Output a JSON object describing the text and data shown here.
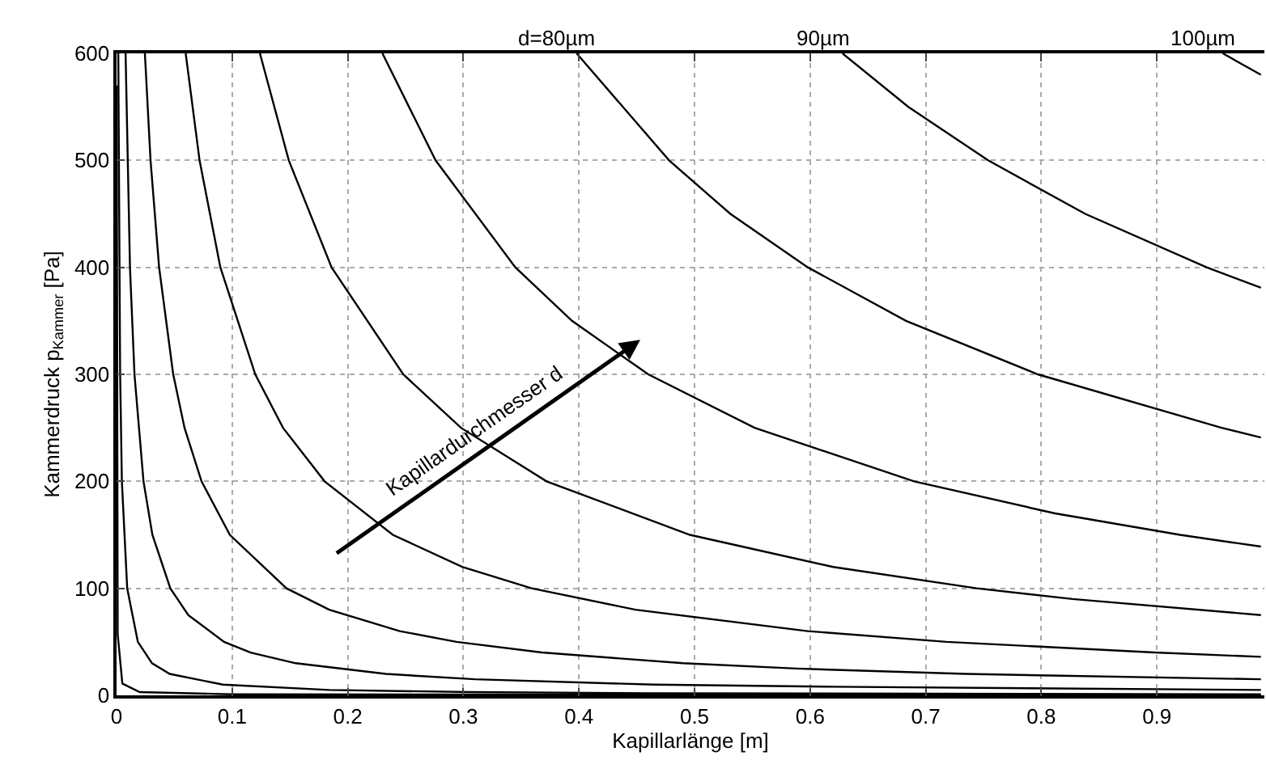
{
  "chart_data": {
    "type": "line",
    "xlabel": "Kapillarlänge [m]",
    "ylabel": "Kammerdruck p$_{Kammer}$ [Pa]",
    "xlim": [
      0,
      0.993
    ],
    "ylim": [
      0,
      600
    ],
    "xticks": [
      0,
      0.1,
      0.2,
      0.3,
      0.4,
      0.5,
      0.6,
      0.7,
      0.8,
      0.9
    ],
    "yticks": [
      0,
      100,
      200,
      300,
      400,
      500,
      600
    ],
    "grid": true,
    "marker": "none",
    "line_style": "solid",
    "annotations": [
      {
        "text": "Kapillardurchmesser d",
        "x": 0.32,
        "y": 231
      }
    ],
    "series": [
      {
        "color": "#000000",
        "x": [
          0.0001,
          0.001,
          0.005,
          0.02,
          0.1,
          0.99
        ],
        "values": [
          570,
          57,
          11,
          3,
          1,
          0
        ]
      },
      {
        "color": "#000000",
        "x": [
          0.0015,
          0.0031,
          0.0046,
          0.0092,
          0.0184,
          0.0307,
          0.046,
          0.092,
          0.184,
          0.307,
          0.46,
          0.99
        ],
        "values": [
          600,
          300,
          200,
          100,
          50,
          30,
          20,
          10,
          5,
          3,
          2,
          1
        ]
      },
      {
        "color": "#000000",
        "x": [
          0.0078,
          0.0116,
          0.0155,
          0.0233,
          0.031,
          0.0465,
          0.062,
          0.093,
          0.116,
          0.155,
          0.233,
          0.31,
          0.465,
          0.62,
          0.99
        ],
        "values": [
          600,
          400,
          300,
          200,
          150,
          100,
          75,
          50,
          40,
          30,
          20,
          15,
          10,
          8,
          5
        ]
      },
      {
        "color": "#000000",
        "x": [
          0.0245,
          0.0294,
          0.0368,
          0.049,
          0.0588,
          0.0735,
          0.098,
          0.147,
          0.184,
          0.245,
          0.294,
          0.368,
          0.49,
          0.588,
          0.735,
          0.99
        ],
        "values": [
          600,
          500,
          400,
          300,
          250,
          200,
          150,
          100,
          80,
          60,
          50,
          40,
          30,
          25,
          20,
          15
        ]
      },
      {
        "color": "#000000",
        "x": [
          0.0598,
          0.0718,
          0.0898,
          0.12,
          0.144,
          0.18,
          0.239,
          0.299,
          0.359,
          0.449,
          0.598,
          0.718,
          0.898,
          0.99
        ],
        "values": [
          600,
          500,
          400,
          300,
          250,
          200,
          150,
          120,
          100,
          80,
          60,
          50,
          40,
          36
        ]
      },
      {
        "color": "#000000",
        "x": [
          0.124,
          0.149,
          0.186,
          0.248,
          0.298,
          0.372,
          0.496,
          0.62,
          0.744,
          0.827,
          0.99
        ],
        "values": [
          600,
          500,
          400,
          300,
          250,
          200,
          150,
          120,
          100,
          90,
          75
        ]
      },
      {
        "color": "#000000",
        "x": [
          0.23,
          0.276,
          0.345,
          0.394,
          0.46,
          0.552,
          0.69,
          0.812,
          0.92,
          0.99
        ],
        "values": [
          600,
          500,
          400,
          350,
          300,
          250,
          200,
          170,
          150,
          139
        ]
      },
      {
        "name": "d=80µm",
        "color": "#000000",
        "x": [
          0.398,
          0.478,
          0.531,
          0.598,
          0.683,
          0.797,
          0.956,
          0.99
        ],
        "values": [
          600,
          500,
          450,
          400,
          350,
          300,
          250,
          241
        ]
      },
      {
        "name": "90µm",
        "color": "#000000",
        "x": [
          0.628,
          0.685,
          0.754,
          0.838,
          0.943,
          0.99
        ],
        "values": [
          600,
          550,
          500,
          450,
          400,
          381
        ]
      },
      {
        "name": "100µm",
        "color": "#000000",
        "x": [
          0.957,
          0.99
        ],
        "values": [
          600,
          580
        ]
      }
    ]
  }
}
